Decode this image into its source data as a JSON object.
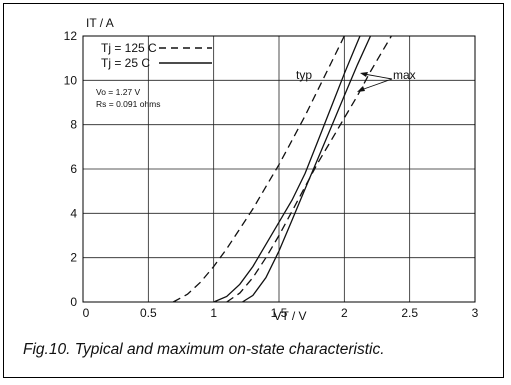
{
  "chart_data": {
    "type": "line",
    "ylabel": "IT / A",
    "xlabel": "VT / V",
    "xlim": [
      0,
      3
    ],
    "ylim": [
      0,
      12
    ],
    "x_ticks": [
      0,
      0.5,
      1,
      1.5,
      2,
      2.5,
      3
    ],
    "x_tick_labels": [
      "0",
      "0.5",
      "1",
      "1.5",
      "2",
      "2.5",
      "3"
    ],
    "y_ticks": [
      0,
      2,
      4,
      6,
      8,
      10,
      12
    ],
    "y_tick_labels": [
      "0",
      "2",
      "4",
      "6",
      "8",
      "10",
      "12"
    ],
    "grid": true,
    "legend": {
      "position": "top-left",
      "entries": [
        {
          "label": "Tj = 125 C",
          "style": "dashed"
        },
        {
          "label": "Tj = 25 C",
          "style": "solid"
        }
      ]
    },
    "annotations": {
      "params": [
        "Vo = 1.27 V",
        "Rs = 0.091 ohms"
      ],
      "typ_label": "typ",
      "max_label": "max"
    },
    "series": [
      {
        "group": "typ",
        "tj": "125",
        "dashed": true,
        "points": [
          [
            0.69,
            0
          ],
          [
            0.8,
            0.35
          ],
          [
            0.9,
            0.9
          ],
          [
            1.0,
            1.6
          ],
          [
            1.1,
            2.4
          ],
          [
            1.2,
            3.3
          ],
          [
            1.3,
            4.2
          ],
          [
            1.4,
            5.2
          ],
          [
            1.5,
            6.2
          ],
          [
            1.6,
            7.3
          ],
          [
            1.7,
            8.4
          ],
          [
            1.8,
            9.6
          ],
          [
            1.9,
            10.8
          ],
          [
            2.0,
            12
          ]
        ]
      },
      {
        "group": "typ",
        "tj": "25",
        "dashed": false,
        "points": [
          [
            1.0,
            0
          ],
          [
            1.1,
            0.25
          ],
          [
            1.2,
            0.8
          ],
          [
            1.3,
            1.6
          ],
          [
            1.4,
            2.6
          ],
          [
            1.5,
            3.6
          ],
          [
            1.6,
            4.6
          ],
          [
            1.7,
            5.8
          ],
          [
            1.8,
            7.3
          ],
          [
            1.9,
            8.8
          ],
          [
            2.0,
            10.3
          ],
          [
            2.07,
            11.3
          ],
          [
            2.12,
            12
          ]
        ]
      },
      {
        "group": "max",
        "tj": "125",
        "dashed": true,
        "points": [
          [
            1.1,
            0
          ],
          [
            1.2,
            0.4
          ],
          [
            1.3,
            1.1
          ],
          [
            1.4,
            2.0
          ],
          [
            1.5,
            3.0
          ],
          [
            1.6,
            4.1
          ],
          [
            1.7,
            5.2
          ],
          [
            1.8,
            6.3
          ],
          [
            1.9,
            7.3
          ],
          [
            2.0,
            8.3
          ],
          [
            2.1,
            9.3
          ],
          [
            2.2,
            10.4
          ],
          [
            2.3,
            11.4
          ],
          [
            2.36,
            12
          ]
        ]
      },
      {
        "group": "max",
        "tj": "25",
        "dashed": false,
        "points": [
          [
            1.22,
            0
          ],
          [
            1.3,
            0.3
          ],
          [
            1.4,
            1.1
          ],
          [
            1.5,
            2.3
          ],
          [
            1.6,
            3.7
          ],
          [
            1.7,
            5.1
          ],
          [
            1.8,
            6.5
          ],
          [
            1.9,
            7.9
          ],
          [
            2.0,
            9.3
          ],
          [
            2.1,
            10.7
          ],
          [
            2.2,
            12
          ]
        ]
      }
    ]
  },
  "caption": "Fig.10.  Typical and maximum on-state characteristic."
}
